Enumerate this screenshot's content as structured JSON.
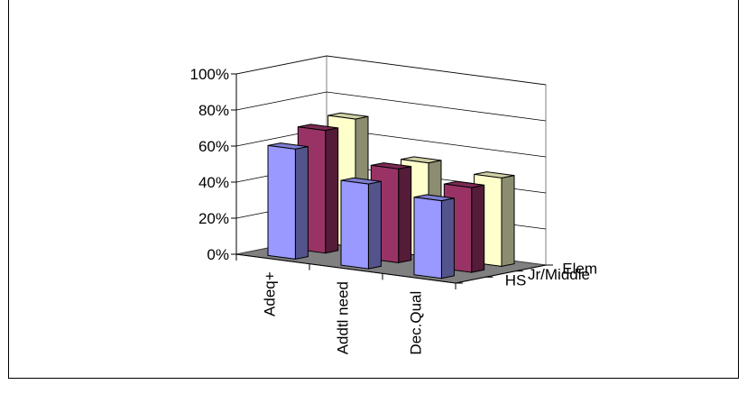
{
  "chart_data": {
    "type": "bar",
    "subtype": "3d-column",
    "title": "",
    "xlabel": "",
    "ylabel": "",
    "ylim": [
      0,
      100
    ],
    "y_unit": "%",
    "yticks": [
      "0%",
      "20%",
      "40%",
      "60%",
      "80%",
      "100%"
    ],
    "categories": [
      "Adeq+",
      "Addtl need",
      "Dec.Qual"
    ],
    "series": [
      {
        "name": "HS",
        "values": [
          61,
          47,
          43
        ],
        "color": "#9999ff"
      },
      {
        "name": "Jr/Middle",
        "values": [
          68,
          52,
          47
        ],
        "color": "#993366"
      },
      {
        "name": "Elem",
        "values": [
          71,
          52,
          49
        ],
        "color": "#ffffcc"
      }
    ],
    "grid": true,
    "wall_color": "#ffffff",
    "floor_color": "#808080"
  }
}
